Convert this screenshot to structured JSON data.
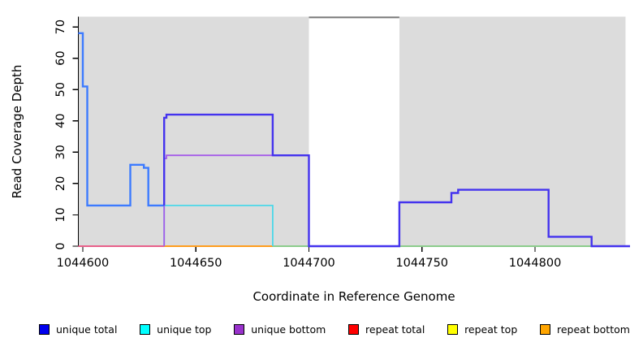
{
  "chart_data": {
    "type": "line",
    "subtype": "step-coverage-plot",
    "title": "",
    "xlabel": "Coordinate in Reference Genome",
    "ylabel": "Read Coverage Depth",
    "xlim": [
      1044598,
      1044842
    ],
    "ylim": [
      0,
      73.3
    ],
    "x_ticks": [
      1044600,
      1044650,
      1044700,
      1044750,
      1044800
    ],
    "y_ticks": [
      0,
      10,
      20,
      30,
      40,
      50,
      60,
      70
    ],
    "grid": false,
    "legend_position": "bottom",
    "panel_color": "#dcdcdc",
    "background_regions": [
      {
        "name": "covered-region-1",
        "x0": 1044598,
        "x1": 1044700,
        "color": "#dcdcdc"
      },
      {
        "name": "covered-region-2",
        "x0": 1044740,
        "x1": 1044840,
        "color": "#dcdcdc"
      }
    ],
    "gap_top_line": {
      "x0": 1044700,
      "x1": 1044740,
      "color": "#787878"
    },
    "series": [
      {
        "name": "repeat-baseline-left-segment",
        "color": "#e8608a",
        "width": 2,
        "points": [
          [
            1044598,
            0
          ],
          [
            1044636,
            0
          ]
        ]
      },
      {
        "name": "repeat-bottom-baseline-segment",
        "color": "#ff9d1e",
        "width": 2,
        "points": [
          [
            1044636,
            0
          ],
          [
            1044684,
            0
          ]
        ]
      },
      {
        "name": "baseline-green-segment-1",
        "color": "#8ccc8c",
        "width": 2,
        "points": [
          [
            1044684,
            0
          ],
          [
            1044700,
            0
          ]
        ]
      },
      {
        "name": "baseline-green-segment-2",
        "color": "#8ccc8c",
        "width": 2,
        "points": [
          [
            1044740,
            0
          ],
          [
            1044826,
            0
          ]
        ]
      },
      {
        "name": "unique-top-line",
        "color": "#4cd8e8",
        "width": 1.8,
        "points": [
          [
            1044636,
            0
          ],
          [
            1044636,
            13
          ],
          [
            1044684,
            13
          ],
          [
            1044684,
            0
          ]
        ]
      },
      {
        "name": "unique-bottom-line",
        "color": "#a55ce8",
        "width": 1.8,
        "points": [
          [
            1044636,
            0
          ],
          [
            1044636,
            28
          ],
          [
            1044637,
            28
          ],
          [
            1044637,
            29
          ],
          [
            1044700,
            29
          ],
          [
            1044700,
            0
          ]
        ]
      },
      {
        "name": "unique-total-and-top-overlap-line",
        "color": "#3d7bff",
        "width": 2.4,
        "points": [
          [
            1044598,
            68
          ],
          [
            1044600,
            68
          ],
          [
            1044600,
            51
          ],
          [
            1044602,
            51
          ],
          [
            1044602,
            13
          ],
          [
            1044621,
            13
          ],
          [
            1044621,
            26
          ],
          [
            1044627,
            26
          ],
          [
            1044627,
            25
          ],
          [
            1044629,
            25
          ],
          [
            1044629,
            13
          ],
          [
            1044636,
            13
          ]
        ]
      },
      {
        "name": "unique-total-line",
        "color": "#4433ee",
        "width": 2.4,
        "points": [
          [
            1044636,
            13
          ],
          [
            1044636,
            41
          ],
          [
            1044637,
            41
          ],
          [
            1044637,
            42
          ],
          [
            1044684,
            42
          ],
          [
            1044684,
            29
          ],
          [
            1044700,
            29
          ],
          [
            1044700,
            0
          ],
          [
            1044740,
            0
          ],
          [
            1044740,
            14
          ],
          [
            1044763,
            14
          ],
          [
            1044763,
            17
          ],
          [
            1044766,
            17
          ],
          [
            1044766,
            18
          ],
          [
            1044806,
            18
          ],
          [
            1044806,
            3
          ],
          [
            1044825,
            3
          ],
          [
            1044825,
            0
          ],
          [
            1044842,
            0
          ]
        ]
      }
    ],
    "legend": [
      {
        "label": "unique total",
        "color": "#0000ee"
      },
      {
        "label": "unique top",
        "color": "#00ffff"
      },
      {
        "label": "unique bottom",
        "color": "#9932cc"
      },
      {
        "label": "repeat total",
        "color": "#ff0000"
      },
      {
        "label": "repeat top",
        "color": "#ffff00"
      },
      {
        "label": "repeat bottom",
        "color": "#ffa500"
      }
    ]
  }
}
